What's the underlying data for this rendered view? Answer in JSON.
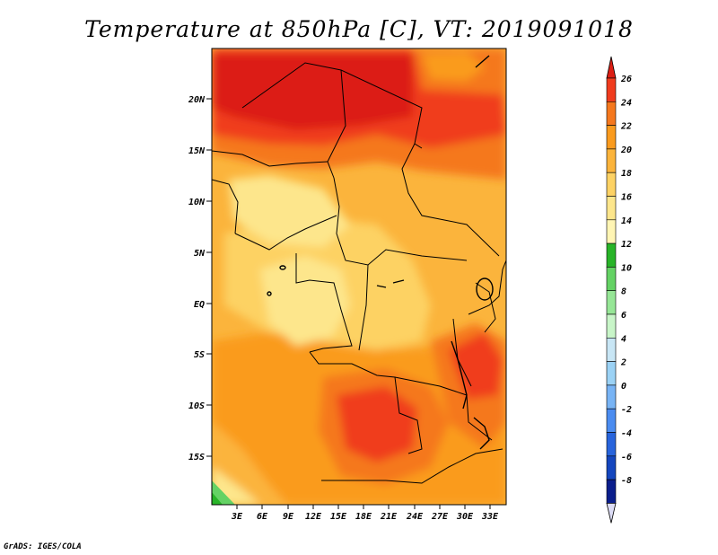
{
  "title": "Temperature at 850hPa [C], VT: 2019091018",
  "footer": "GrADS: IGES/COLA",
  "axes": {
    "lat_labels": [
      "20N",
      "15N",
      "10N",
      "5N",
      "EQ",
      "5S",
      "10S",
      "15S"
    ],
    "lon_labels": [
      "3E",
      "6E",
      "9E",
      "12E",
      "15E",
      "18E",
      "21E",
      "24E",
      "27E",
      "30E",
      "33E"
    ]
  },
  "colorbar": {
    "labels": [
      "26",
      "24",
      "22",
      "20",
      "18",
      "16",
      "14",
      "12",
      "10",
      "8",
      "6",
      "4",
      "2",
      "0",
      "-2",
      "-4",
      "-6",
      "-8"
    ],
    "colors": [
      "#f03c1e",
      "#f5781e",
      "#fa9b1e",
      "#fbb43c",
      "#fdd264",
      "#fde68c",
      "#fff5b4",
      "#28b428",
      "#64d264",
      "#96e696",
      "#c8f5c8",
      "#c8e6f5",
      "#9bd2f5",
      "#78b4f5",
      "#4b8cf0",
      "#2864dc",
      "#1446be",
      "#0a1e8c"
    ],
    "top_color": "#dc1e14",
    "bottom_color": "#dcdcf5"
  }
}
